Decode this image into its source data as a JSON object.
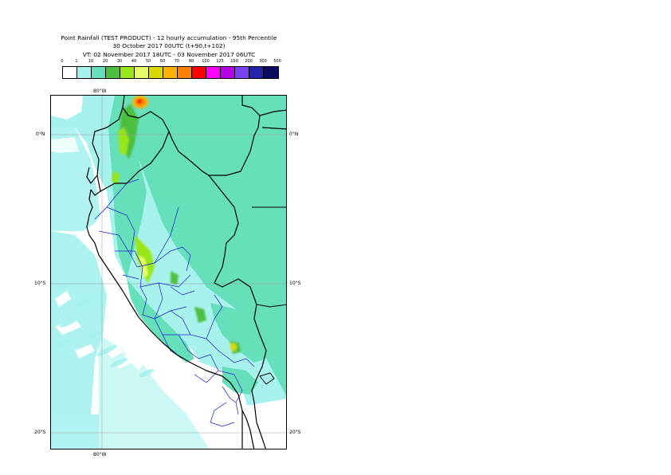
{
  "title": {
    "line1": "Point Rainfall (TEST PRODUCT) - 12 hourly accumulation - 95th Percentile",
    "line2": "30 October 2017 00UTC (t+90,t+102)",
    "line3": "VT: 02 November 2017 18UTC - 03 November 2017 06UTC"
  },
  "legend": {
    "ticks": [
      "0",
      "1",
      "10",
      "20",
      "30",
      "40",
      "50",
      "60",
      "70",
      "80",
      "100",
      "125",
      "150",
      "200",
      "300",
      "500"
    ],
    "colors": [
      "#ffffff",
      "#a8f2ee",
      "#66e0bb",
      "#4dbf40",
      "#99e619",
      "#e6ff66",
      "#d9d900",
      "#ffb300",
      "#ff8000",
      "#ff0000",
      "#ff00ff",
      "#b300e6",
      "#7840f0",
      "#2222aa",
      "#0a0a60"
    ]
  },
  "axes": {
    "lon_top": "80°W",
    "lon_bottom": "80°W",
    "lat_0_left": "0°N",
    "lat_0_right": "0°N",
    "lat_10_left": "10°S",
    "lat_10_right": "10°S",
    "lat_20_left": "20°S",
    "lat_20_right": "20°S"
  },
  "colors": {
    "ocean_light": "#a8f2ee",
    "land_medium": "#66e0bb",
    "heavy_green": "#99d633",
    "borders_national": "#000000",
    "borders_regional": "#1a1acc"
  }
}
